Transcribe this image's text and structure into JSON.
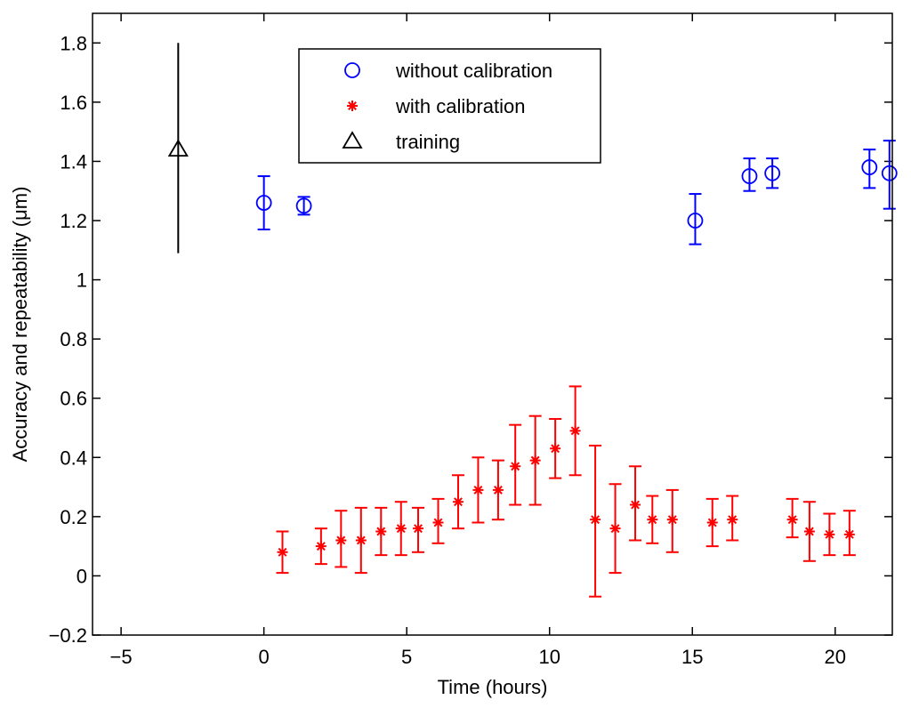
{
  "chart_data": {
    "type": "scatter",
    "xlabel": "Time (hours)",
    "ylabel": "Accuracy and repeatability (μm)",
    "xlim": [
      -6,
      22
    ],
    "ylim": [
      -0.2,
      1.9
    ],
    "x_ticks": [
      -5,
      0,
      5,
      10,
      15,
      20
    ],
    "y_ticks": [
      -0.2,
      0,
      0.2,
      0.4,
      0.6,
      0.8,
      1,
      1.2,
      1.4,
      1.6,
      1.8
    ],
    "x_tick_labels": [
      "−5",
      "0",
      "5",
      "10",
      "15",
      "20"
    ],
    "y_tick_labels": [
      "−0.2",
      "0",
      "0.2",
      "0.4",
      "0.6",
      "0.8",
      "1",
      "1.2",
      "1.4",
      "1.6",
      "1.8"
    ],
    "grid": false,
    "legend_position": "top-center",
    "series": [
      {
        "name": "without calibration",
        "marker": "circle",
        "color": "#0000ff",
        "points": [
          {
            "x": 0.0,
            "y": 1.26,
            "lo": 1.17,
            "hi": 1.35
          },
          {
            "x": 1.4,
            "y": 1.25,
            "lo": 1.22,
            "hi": 1.28
          },
          {
            "x": 15.1,
            "y": 1.2,
            "lo": 1.12,
            "hi": 1.29
          },
          {
            "x": 17.0,
            "y": 1.35,
            "lo": 1.3,
            "hi": 1.41
          },
          {
            "x": 17.8,
            "y": 1.36,
            "lo": 1.31,
            "hi": 1.41
          },
          {
            "x": 21.2,
            "y": 1.38,
            "lo": 1.31,
            "hi": 1.44
          },
          {
            "x": 21.9,
            "y": 1.36,
            "lo": 1.24,
            "hi": 1.47
          }
        ]
      },
      {
        "name": "with calibration",
        "marker": "star",
        "color": "#ff0000",
        "points": [
          {
            "x": 0.65,
            "y": 0.08,
            "lo": 0.01,
            "hi": 0.15
          },
          {
            "x": 2.0,
            "y": 0.1,
            "lo": 0.04,
            "hi": 0.16
          },
          {
            "x": 2.7,
            "y": 0.12,
            "lo": 0.03,
            "hi": 0.22
          },
          {
            "x": 3.4,
            "y": 0.12,
            "lo": 0.01,
            "hi": 0.23
          },
          {
            "x": 4.1,
            "y": 0.15,
            "lo": 0.07,
            "hi": 0.23
          },
          {
            "x": 4.8,
            "y": 0.16,
            "lo": 0.07,
            "hi": 0.25
          },
          {
            "x": 5.4,
            "y": 0.16,
            "lo": 0.08,
            "hi": 0.23
          },
          {
            "x": 6.1,
            "y": 0.18,
            "lo": 0.11,
            "hi": 0.26
          },
          {
            "x": 6.8,
            "y": 0.25,
            "lo": 0.16,
            "hi": 0.34
          },
          {
            "x": 7.5,
            "y": 0.29,
            "lo": 0.18,
            "hi": 0.4
          },
          {
            "x": 8.2,
            "y": 0.29,
            "lo": 0.19,
            "hi": 0.39
          },
          {
            "x": 8.8,
            "y": 0.37,
            "lo": 0.24,
            "hi": 0.51
          },
          {
            "x": 9.5,
            "y": 0.39,
            "lo": 0.24,
            "hi": 0.54
          },
          {
            "x": 10.2,
            "y": 0.43,
            "lo": 0.33,
            "hi": 0.53
          },
          {
            "x": 10.9,
            "y": 0.49,
            "lo": 0.34,
            "hi": 0.64
          },
          {
            "x": 11.6,
            "y": 0.19,
            "lo": -0.07,
            "hi": 0.44
          },
          {
            "x": 12.3,
            "y": 0.16,
            "lo": 0.01,
            "hi": 0.31
          },
          {
            "x": 13.0,
            "y": 0.24,
            "lo": 0.12,
            "hi": 0.37
          },
          {
            "x": 13.6,
            "y": 0.19,
            "lo": 0.11,
            "hi": 0.27
          },
          {
            "x": 14.3,
            "y": 0.19,
            "lo": 0.08,
            "hi": 0.29
          },
          {
            "x": 15.7,
            "y": 0.18,
            "lo": 0.1,
            "hi": 0.26
          },
          {
            "x": 16.4,
            "y": 0.19,
            "lo": 0.12,
            "hi": 0.27
          },
          {
            "x": 18.5,
            "y": 0.19,
            "lo": 0.13,
            "hi": 0.26
          },
          {
            "x": 19.1,
            "y": 0.15,
            "lo": 0.05,
            "hi": 0.25
          },
          {
            "x": 19.8,
            "y": 0.14,
            "lo": 0.07,
            "hi": 0.21
          },
          {
            "x": 20.5,
            "y": 0.14,
            "lo": 0.07,
            "hi": 0.22
          }
        ]
      },
      {
        "name": "training",
        "marker": "triangle",
        "color": "#000000",
        "points": [
          {
            "x": -3.0,
            "y": 1.44,
            "lo": 1.09,
            "hi": 1.8
          }
        ]
      }
    ]
  }
}
